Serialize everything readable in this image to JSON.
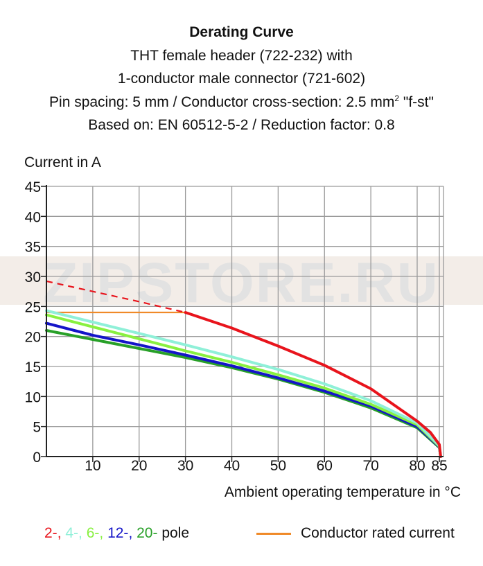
{
  "title": {
    "line1": "Derating Curve",
    "line2": "THT female header  (722-232) with",
    "line3": "1-conductor male connector (721-602)",
    "line4_pre": "Pin spacing: 5 mm / Conductor cross-section: 2.5 mm",
    "line4_sup": "2",
    "line4_post": " \"f-st\"",
    "line5": "Based on: EN 60512-5-2 / Reduction factor: 0.8"
  },
  "watermark": "ZIPSTORE.RU",
  "colors": {
    "red": "#e8141c",
    "cyan": "#8ff0d8",
    "light_green": "#88f040",
    "blue": "#1414c8",
    "green": "#28a028",
    "orange": "#f08a28",
    "grid": "#9a9a9a"
  },
  "legend": {
    "poles": [
      {
        "label": "2-",
        "sep": ", ",
        "color": "#e8141c"
      },
      {
        "label": "4-",
        "sep": ", ",
        "color": "#8ff0d8"
      },
      {
        "label": "6-",
        "sep": ", ",
        "color": "#88f040"
      },
      {
        "label": "12-",
        "sep": ", ",
        "color": "#1414c8"
      },
      {
        "label": "20-",
        "sep": " ",
        "color": "#28a028"
      }
    ],
    "pole_suffix": "pole",
    "conductor_label": "Conductor rated current"
  },
  "chart_data": {
    "type": "line",
    "ylabel": "Current in A",
    "xlabel": "Ambient operating temperature in °C",
    "xlim": [
      0,
      86
    ],
    "ylim": [
      0,
      45
    ],
    "grid": true,
    "x_ticks": [
      10,
      20,
      30,
      40,
      50,
      60,
      70,
      80,
      85
    ],
    "y_ticks": [
      0,
      5,
      10,
      15,
      20,
      25,
      30,
      35,
      40,
      45
    ],
    "series": [
      {
        "name": "2-",
        "color": "#e8141c",
        "dashed_x": [
          0,
          10,
          20,
          30
        ],
        "dashed_y": [
          29.2,
          27.5,
          25.8,
          24.0
        ],
        "x": [
          30,
          40,
          50,
          60,
          70,
          80,
          83,
          85,
          85.3
        ],
        "y": [
          24.0,
          21.4,
          18.4,
          15.2,
          11.3,
          5.9,
          4.0,
          2.0,
          0
        ]
      },
      {
        "name": "4-",
        "color": "#8ff0d8",
        "x": [
          0,
          10,
          20,
          30,
          40,
          50,
          60,
          70,
          80,
          85,
          85.3
        ],
        "y": [
          24.3,
          22.4,
          20.5,
          18.6,
          16.6,
          14.5,
          12.1,
          9.3,
          5.6,
          1.8,
          0
        ]
      },
      {
        "name": "6-",
        "color": "#88f040",
        "x": [
          0,
          10,
          20,
          30,
          40,
          50,
          60,
          70,
          80,
          85,
          85.3
        ],
        "y": [
          23.6,
          21.6,
          19.6,
          17.6,
          15.7,
          13.6,
          11.4,
          8.7,
          5.3,
          1.7,
          0
        ]
      },
      {
        "name": "12-",
        "color": "#1414c8",
        "x": [
          0,
          10,
          20,
          30,
          40,
          50,
          60,
          70,
          80,
          85,
          85.3
        ],
        "y": [
          22.2,
          20.2,
          18.6,
          16.9,
          15.1,
          13.1,
          10.9,
          8.4,
          5.0,
          1.6,
          0
        ]
      },
      {
        "name": "20-",
        "color": "#28a028",
        "x": [
          0,
          10,
          20,
          30,
          40,
          50,
          60,
          70,
          80,
          85,
          85.3
        ],
        "y": [
          21.0,
          19.5,
          18.0,
          16.5,
          14.8,
          12.9,
          10.7,
          8.1,
          4.8,
          1.5,
          0
        ]
      },
      {
        "name": "Conductor rated current",
        "color": "#f08a28",
        "x": [
          0,
          30
        ],
        "y": [
          24.0,
          24.0
        ]
      }
    ]
  }
}
